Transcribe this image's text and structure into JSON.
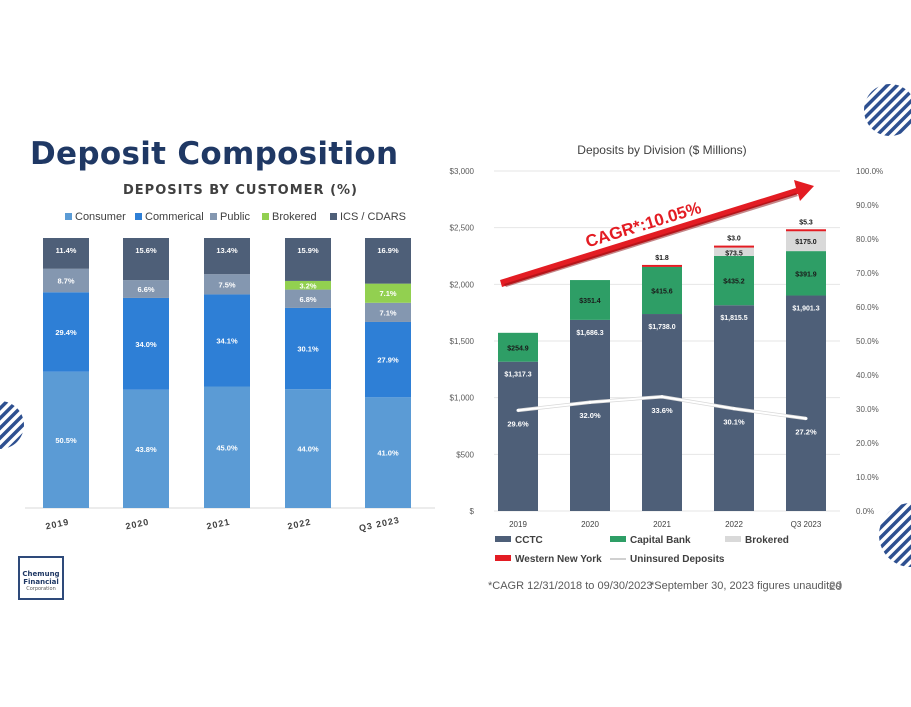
{
  "slide": {
    "title": "Deposit Composition",
    "page_number": "29",
    "footnote_cagr": "*CAGR 12/31/2018 to 09/30/2023",
    "footnote_unaudited": "*September 30, 2023 figures unaudited",
    "logo": {
      "line1": "Chemung",
      "line2": "Financial",
      "line3": "Corporation"
    }
  },
  "colors": {
    "title": "#1f3864",
    "consumer": "#5b9bd5",
    "commercial": "#2e7fd6",
    "public": "#8497b0",
    "brokered_pct": "#92d050",
    "ics": "#4e5f78",
    "cctc": "#4e5f78",
    "capital_bank": "#2e9e66",
    "brokered_div": "#d9d9d9",
    "western_ny": "#e31c23"
  },
  "chart_data": [
    {
      "type": "bar",
      "stacked": true,
      "title": "DEPOSITS BY CUSTOMER (%)",
      "categories": [
        "2019",
        "2020",
        "2021",
        "2022",
        "Q3 2023"
      ],
      "series": [
        {
          "name": "Consumer",
          "values": [
            50.5,
            43.8,
            45.0,
            44.0,
            41.0
          ],
          "labels": [
            "50.5%",
            "43.8%",
            "45.0%",
            "44.0%",
            "41.0%"
          ]
        },
        {
          "name": "Commerical",
          "values": [
            29.4,
            34.0,
            34.1,
            30.1,
            27.9
          ],
          "labels": [
            "29.4%",
            "34.0%",
            "34.1%",
            "30.1%",
            "27.9%"
          ]
        },
        {
          "name": "Public",
          "values": [
            8.7,
            6.6,
            7.5,
            6.8,
            7.1
          ],
          "labels": [
            "8.7%",
            "6.6%",
            "7.5%",
            "6.8%",
            "7.1%"
          ]
        },
        {
          "name": "Brokered",
          "values": [
            0,
            0,
            0,
            3.2,
            7.1
          ],
          "labels": [
            "",
            "",
            "",
            "3.2%",
            "7.1%"
          ]
        },
        {
          "name": "ICS / CDARS",
          "values": [
            11.4,
            15.6,
            13.4,
            15.9,
            16.9
          ],
          "labels": [
            "11.4%",
            "15.6%",
            "13.4%",
            "15.9%",
            "16.9%"
          ]
        }
      ],
      "ylim": [
        0,
        100
      ],
      "legend": "top"
    },
    {
      "type": "bar",
      "stacked": true,
      "title": "Deposits by Division ($ Millions)",
      "categories": [
        "2019",
        "2020",
        "2021",
        "2022",
        "Q3 2023"
      ],
      "y_ticks": [
        "$",
        "$500",
        "$1,000",
        "$1,500",
        "$2,000",
        "$2,500",
        "$3,000"
      ],
      "y2_ticks": [
        "0.0%",
        "10.0%",
        "20.0%",
        "30.0%",
        "40.0%",
        "50.0%",
        "60.0%",
        "70.0%",
        "80.0%",
        "90.0%",
        "100.0%"
      ],
      "ylim": [
        0,
        3000
      ],
      "y2lim": [
        0,
        100
      ],
      "series": [
        {
          "name": "CCTC",
          "values": [
            1317.3,
            1686.3,
            1738.0,
            1815.5,
            1901.3
          ],
          "labels": [
            "$1,317.3",
            "$1,686.3",
            "$1,738.0",
            "$1,815.5",
            "$1,901.3"
          ]
        },
        {
          "name": "Capital Bank",
          "values": [
            254.9,
            351.4,
            415.6,
            435.2,
            391.9
          ],
          "labels": [
            "$254.9",
            "$351.4",
            "$415.6",
            "$435.2",
            "$391.9"
          ]
        },
        {
          "name": "Brokered",
          "values": [
            0,
            0,
            0,
            73.5,
            175.0
          ],
          "labels": [
            "",
            "",
            "",
            "$73.5",
            "$175.0"
          ]
        },
        {
          "name": "Western New York",
          "values": [
            0,
            0,
            1.8,
            3.0,
            5.3
          ],
          "labels": [
            "",
            "",
            "$1.8",
            "$3.0",
            "$5.3"
          ]
        }
      ],
      "line_series": {
        "name": "Uninsured Deposits",
        "axis": "secondary",
        "values": [
          29.6,
          32.0,
          33.6,
          30.1,
          27.2
        ],
        "labels": [
          "29.6%",
          "32.0%",
          "33.6%",
          "30.1%",
          "27.2%"
        ]
      },
      "annotation": "CAGR*:10.05%",
      "legend": "bottom"
    }
  ]
}
